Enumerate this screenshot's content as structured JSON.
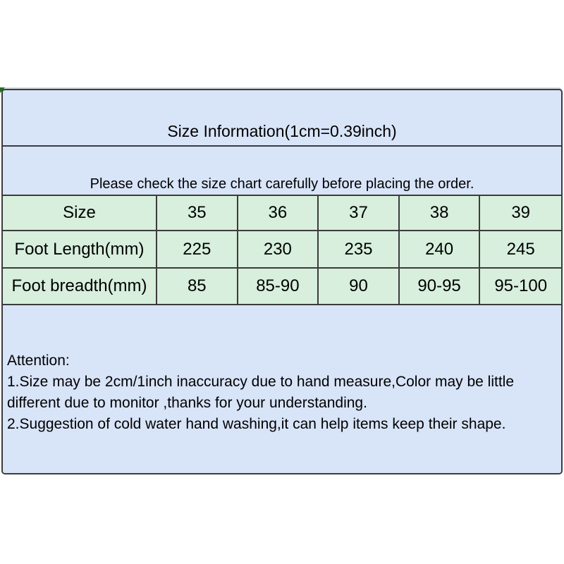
{
  "panel": {
    "title": "Size Information(1cm=0.39inch)",
    "notice": "Please check the size chart carefully before placing the order.",
    "colors": {
      "blue_bg": "#d8e4f8",
      "green_bg": "#d7efdc",
      "border": "#3c3c3c",
      "corner_mark": "#227022",
      "text": "#000000",
      "page_bg": "#ffffff"
    }
  },
  "size_table": {
    "rows": [
      {
        "label": "Size",
        "values": [
          "35",
          "36",
          "37",
          "38",
          "39"
        ]
      },
      {
        "label": "Foot Length(mm)",
        "values": [
          "225",
          "230",
          "235",
          "240",
          "245"
        ]
      },
      {
        "label": "Foot breadth(mm)",
        "values": [
          "85",
          "85-90",
          "90",
          "90-95",
          "95-100"
        ]
      }
    ]
  },
  "attention": {
    "heading": "Attention:",
    "lines": [
      "1.Size may be 2cm/1inch inaccuracy due to hand measure,Color may be little different due to monitor ,thanks for your understanding.",
      "2.Suggestion of cold water hand washing,it can help items keep their shape."
    ]
  }
}
